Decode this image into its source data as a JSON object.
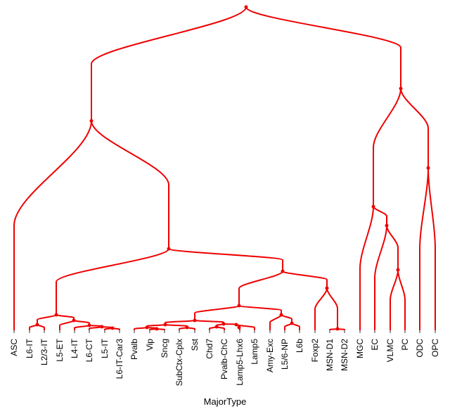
{
  "diagram": {
    "type": "dendrogram",
    "xlabel": "MajorType",
    "color": "#ee0000",
    "leaves": [
      "ASC",
      "L6-IT",
      "L2/3-IT",
      "L5-ET",
      "L4-IT",
      "L6-CT",
      "L5-IT",
      "L6-IT-Car3",
      "Pvalb",
      "Vip",
      "Sncg",
      "SubCtx-Cplx",
      "Sst",
      "Chd7",
      "Pvalb-ChC",
      "Lamp5-Lhx6",
      "Lamp5",
      "Amy-Exc",
      "L5/6-NP",
      "L6b",
      "Foxp2",
      "MSN-D1",
      "MSN-D2",
      "MGC",
      "EC",
      "VLMC",
      "PC",
      "ODC",
      "OPC"
    ]
  }
}
